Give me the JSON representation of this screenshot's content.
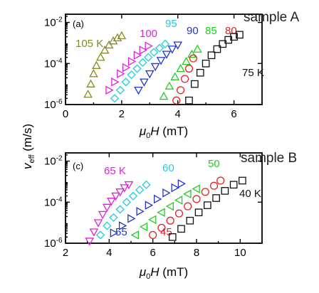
{
  "figure": {
    "y_axis_label": "v",
    "y_axis_label_sub": "eff",
    "y_axis_label_unit": " (m/s)"
  },
  "chart_data": [
    {
      "type": "scatter",
      "panel_label": "(a)",
      "sample_label": "sample A",
      "xlabel_sym": "μ",
      "xlabel_sub": "0",
      "xlabel_var": "H",
      "xlabel_unit": " (mT)",
      "xlim": [
        0,
        7
      ],
      "ylim_log10": [
        -6,
        -1.6
      ],
      "y_scale": "log",
      "grid": false,
      "xticks": [
        0,
        2,
        4,
        6
      ],
      "xtick_labels": [
        "0",
        "2",
        "4",
        "6"
      ],
      "yticks_log10": [
        -6,
        -4,
        -2
      ],
      "ytick_labels": [
        "10",
        "10",
        "10"
      ],
      "ytick_exponents": [
        "-6",
        "-4",
        "-2"
      ],
      "series": [
        {
          "name": "105 K",
          "color": "#888820",
          "marker": "triangle-up",
          "x": [
            0.8,
            0.9,
            1.0,
            1.1,
            1.25,
            1.4,
            1.55,
            1.7,
            1.85,
            2.0
          ],
          "y_log10": [
            -5.5,
            -5.0,
            -4.5,
            -4.1,
            -3.7,
            -3.35,
            -3.1,
            -2.9,
            -2.75,
            -2.65
          ]
        },
        {
          "name": "100",
          "color": "#dd22dd",
          "marker": "triangle-right",
          "x": [
            1.55,
            1.75,
            1.95,
            2.15,
            2.35,
            2.55,
            2.75,
            2.95
          ],
          "y_log10": [
            -5.3,
            -4.9,
            -4.5,
            -4.2,
            -3.9,
            -3.6,
            -3.35,
            -3.15
          ]
        },
        {
          "name": "95",
          "color": "#22ccdd",
          "marker": "diamond",
          "x": [
            1.75,
            1.95,
            2.15,
            2.35,
            2.55,
            2.75,
            2.95,
            3.15,
            3.35,
            3.55
          ],
          "y_log10": [
            -5.7,
            -5.3,
            -4.9,
            -4.55,
            -4.25,
            -3.95,
            -3.7,
            -3.45,
            -3.25,
            -3.05
          ]
        },
        {
          "name": "90",
          "color": "#2233cc",
          "marker": "triangle-down",
          "x": [
            2.6,
            2.8,
            3.0,
            3.2,
            3.4,
            3.6,
            3.8,
            4.0
          ],
          "y_log10": [
            -5.3,
            -4.9,
            -4.5,
            -4.15,
            -3.85,
            -3.55,
            -3.3,
            -3.1
          ]
        },
        {
          "name": "85",
          "color": "#22cc22",
          "marker": "triangle-up",
          "x": [
            3.5,
            3.7,
            3.9,
            4.1,
            4.3,
            4.5,
            4.7
          ],
          "y_log10": [
            -5.6,
            -5.1,
            -4.65,
            -4.25,
            -3.9,
            -3.55,
            -3.3
          ]
        },
        {
          "name": "80",
          "color": "#dd2222",
          "marker": "circle",
          "x": [
            3.95,
            4.1,
            4.25,
            4.4,
            4.55
          ],
          "y_log10": [
            -5.8,
            -5.3,
            -4.75,
            -4.25,
            -3.75
          ]
        },
        {
          "name": "75 K",
          "color": "#111111",
          "marker": "square",
          "x": [
            4.4,
            4.6,
            4.8,
            5.0,
            5.2,
            5.4,
            5.6,
            5.8,
            6.0,
            6.2
          ],
          "y_log10": [
            -5.8,
            -5.0,
            -4.45,
            -4.0,
            -3.6,
            -3.3,
            -3.05,
            -2.85,
            -2.7,
            -2.6
          ]
        }
      ]
    },
    {
      "type": "scatter",
      "panel_label": "(c)",
      "sample_label": "sample B",
      "xlabel_sym": "μ",
      "xlabel_sub": "0",
      "xlabel_var": "H",
      "xlabel_unit": " (mT)",
      "xlim": [
        2,
        11
      ],
      "ylim_log10": [
        -6,
        -1.6
      ],
      "y_scale": "log",
      "grid": false,
      "xticks": [
        2,
        4,
        6,
        8,
        10
      ],
      "xtick_labels": [
        "2",
        "4",
        "6",
        "8",
        "10"
      ],
      "yticks_log10": [
        -6,
        -4,
        -2
      ],
      "ytick_labels": [
        "10",
        "10",
        "10"
      ],
      "ytick_exponents": [
        "-6",
        "-4",
        "-2"
      ],
      "series": [
        {
          "name": "65 K",
          "color": "#dd22dd",
          "marker": "triangle-down",
          "x": [
            3.1,
            3.3,
            3.5,
            3.7,
            3.9,
            4.1,
            4.3,
            4.5,
            4.7,
            4.9
          ],
          "y_log10": [
            -5.9,
            -5.45,
            -5.0,
            -4.6,
            -4.25,
            -3.95,
            -3.7,
            -3.5,
            -3.3,
            -3.15
          ]
        },
        {
          "name": "60",
          "color": "#22ccdd",
          "marker": "diamond",
          "x": [
            3.6,
            3.9,
            4.2,
            4.5,
            4.8,
            5.1,
            5.4,
            5.7
          ],
          "y_log10": [
            -5.6,
            -5.15,
            -4.75,
            -4.35,
            -4.0,
            -3.7,
            -3.4,
            -3.15
          ]
        },
        {
          "name": "55",
          "color": "#2233cc",
          "marker": "triangle-right",
          "x": [
            4.2,
            4.6,
            5.0,
            5.4,
            5.8,
            6.2,
            6.6,
            7.0,
            7.3
          ],
          "y_log10": [
            -5.5,
            -5.15,
            -4.8,
            -4.45,
            -4.15,
            -3.85,
            -3.55,
            -3.3,
            -3.1
          ]
        },
        {
          "name": "50",
          "color": "#22cc22",
          "marker": "triangle-left",
          "x": [
            5.2,
            5.6,
            6.0,
            6.4,
            6.8,
            7.2,
            7.6,
            8.0
          ],
          "y_log10": [
            -5.6,
            -5.2,
            -4.85,
            -4.5,
            -4.2,
            -3.9,
            -3.6,
            -3.35
          ]
        },
        {
          "name": "45",
          "color": "#dd2222",
          "marker": "circle",
          "x": [
            6.0,
            6.4,
            6.8,
            7.2,
            7.6,
            8.0,
            8.4,
            8.8,
            9.1
          ],
          "y_log10": [
            -5.6,
            -5.25,
            -4.9,
            -4.55,
            -4.2,
            -3.85,
            -3.5,
            -3.2,
            -2.95
          ]
        },
        {
          "name": "40 K",
          "color": "#111111",
          "marker": "square",
          "x": [
            6.9,
            7.3,
            7.7,
            8.1,
            8.5,
            8.9,
            9.3,
            9.7,
            10.1
          ],
          "y_log10": [
            -5.7,
            -5.3,
            -4.9,
            -4.5,
            -4.15,
            -3.8,
            -3.45,
            -3.15,
            -2.95
          ]
        }
      ]
    }
  ]
}
